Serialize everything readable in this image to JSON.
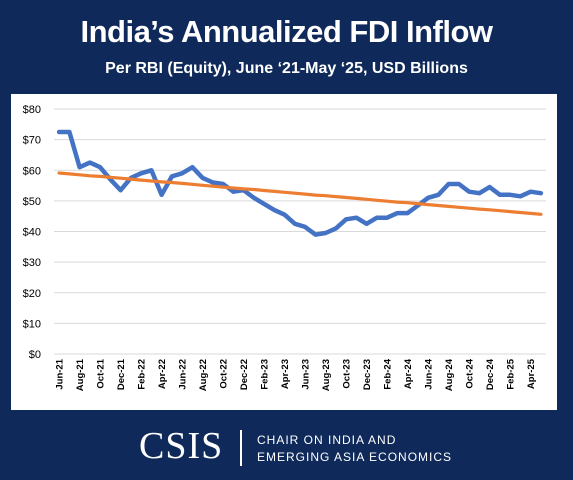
{
  "chart_data": {
    "type": "line",
    "title": "India’s Annualized FDI Inflow",
    "subtitle": "Per RBI (Equity), June ‘21-May ‘25, USD Billions",
    "xlabel": "",
    "ylabel": "",
    "ylim": [
      0,
      80
    ],
    "yticks": [
      "$0",
      "$10",
      "$20",
      "$30",
      "$40",
      "$50",
      "$60",
      "$70",
      "$80"
    ],
    "grid": true,
    "categories": [
      "Jun-21",
      "Jul-21",
      "Aug-21",
      "Sep-21",
      "Oct-21",
      "Nov-21",
      "Dec-21",
      "Jan-22",
      "Feb-22",
      "Mar-22",
      "Apr-22",
      "May-22",
      "Jun-22",
      "Jul-22",
      "Aug-22",
      "Sep-22",
      "Oct-22",
      "Nov-22",
      "Dec-22",
      "Jan-23",
      "Feb-23",
      "Mar-23",
      "Apr-23",
      "May-23",
      "Jun-23",
      "Jul-23",
      "Aug-23",
      "Sep-23",
      "Oct-23",
      "Nov-23",
      "Dec-23",
      "Jan-24",
      "Feb-24",
      "Mar-24",
      "Apr-24",
      "May-24",
      "Jun-24",
      "Jul-24",
      "Aug-24",
      "Sep-24",
      "Oct-24",
      "Nov-24",
      "Dec-24",
      "Jan-25",
      "Feb-25",
      "Mar-25",
      "Apr-25",
      "May-25"
    ],
    "xtick_labels": [
      "Jun-21",
      "",
      "Aug-21",
      "",
      "Oct-21",
      "",
      "Dec-21",
      "",
      "Feb-22",
      "",
      "Apr-22",
      "",
      "Jun-22",
      "",
      "Aug-22",
      "",
      "Oct-22",
      "",
      "Dec-22",
      "",
      "Feb-23",
      "",
      "Apr-23",
      "",
      "Jun-23",
      "",
      "Aug-23",
      "",
      "Oct-23",
      "",
      "Dec-23",
      "",
      "Feb-24",
      "",
      "Apr-24",
      "",
      "Jun-24",
      "",
      "Aug-24",
      "",
      "Oct-24",
      "",
      "Dec-24",
      "",
      "Feb-25",
      "",
      "Apr-25",
      ""
    ],
    "series": [
      {
        "values": [
          72.5,
          72.5,
          61,
          62.5,
          61,
          57,
          53.5,
          57.5,
          59,
          60,
          52,
          58,
          59,
          61,
          57.5,
          56,
          55.5,
          53,
          53.5,
          51,
          49,
          47,
          45.5,
          42.5,
          41.5,
          39,
          39.5,
          41,
          44,
          44.5,
          42.5,
          44.5,
          44.5,
          46,
          46,
          48.5,
          51,
          52,
          55.5,
          55.5,
          53,
          52.5,
          54.5,
          52,
          52,
          51.5,
          53,
          52.5
        ],
        "color": "#4472c4"
      },
      {
        "type": "trendline",
        "values": [
          59.1,
          58.8,
          58.5,
          58.2,
          58.0,
          57.7,
          57.4,
          57.1,
          56.8,
          56.5,
          56.2,
          56.0,
          55.7,
          55.4,
          55.1,
          54.8,
          54.5,
          54.2,
          53.9,
          53.7,
          53.4,
          53.1,
          52.8,
          52.5,
          52.2,
          51.9,
          51.7,
          51.4,
          51.1,
          50.8,
          50.5,
          50.2,
          49.9,
          49.6,
          49.4,
          49.1,
          48.8,
          48.5,
          48.2,
          47.9,
          47.6,
          47.3,
          47.1,
          46.8,
          46.5,
          46.2,
          45.9,
          45.6
        ],
        "color": "#ed7d31"
      }
    ]
  },
  "footer": {
    "logo_text": "CSIS",
    "org_line1": "CHAIR ON INDIA AND",
    "org_line2": "EMERGING ASIA ECONOMICS"
  }
}
